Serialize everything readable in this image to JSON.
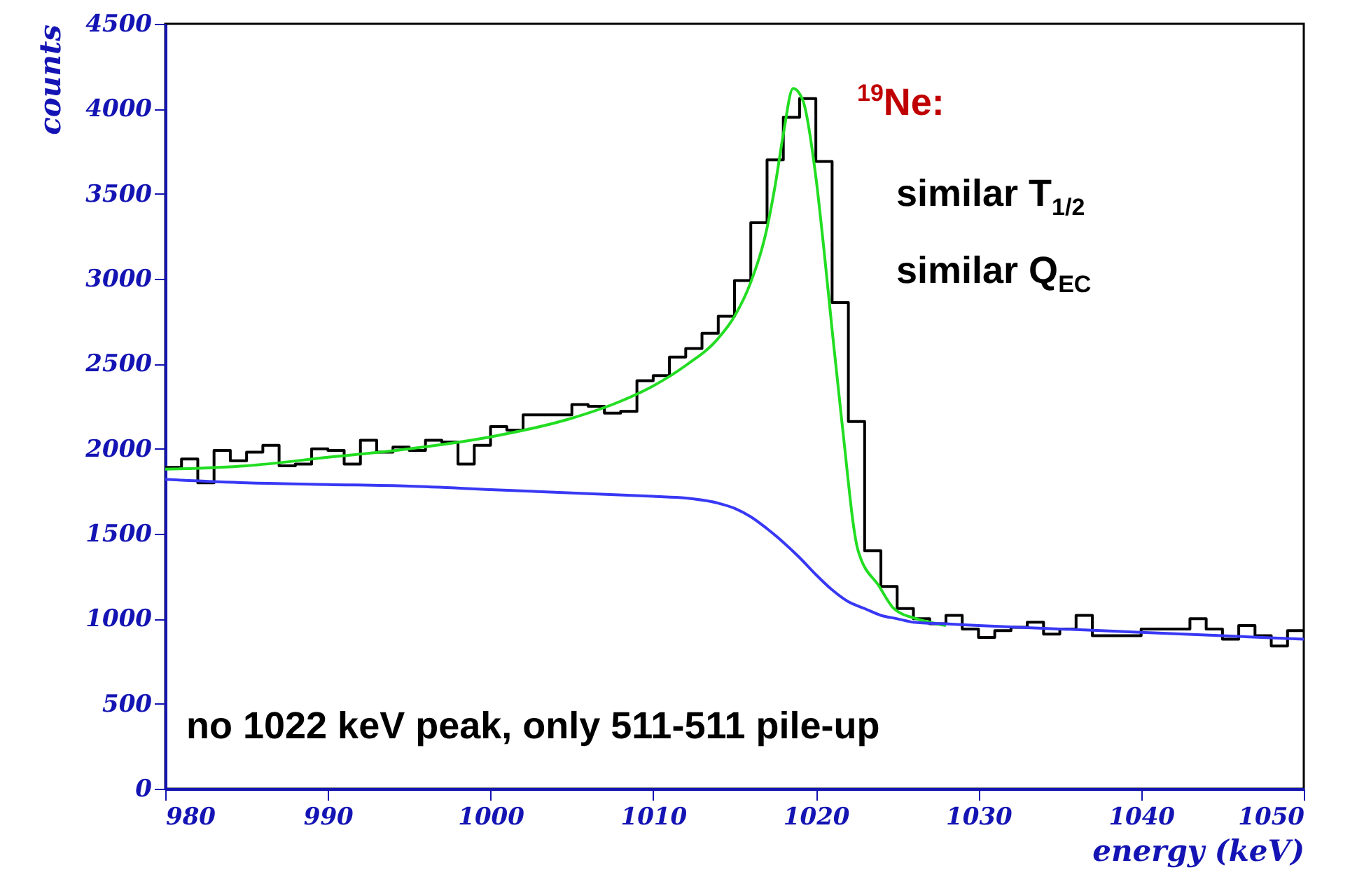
{
  "chart_data": {
    "type": "histogram",
    "xlabel": "energy (keV)",
    "ylabel": "counts",
    "bins": [
      980,
      981,
      982,
      983,
      984,
      985,
      986,
      987,
      988,
      989,
      990,
      991,
      992,
      993,
      994,
      995,
      996,
      997,
      998,
      999,
      1000,
      1001,
      1002,
      1003,
      1004,
      1005,
      1006,
      1007,
      1008,
      1009,
      1010,
      1011,
      1012,
      1013,
      1014,
      1015,
      1016,
      1017,
      1018,
      1019,
      1020,
      1021,
      1022,
      1023,
      1024,
      1025,
      1026,
      1027,
      1028,
      1029,
      1030,
      1031,
      1032,
      1033,
      1034,
      1035,
      1036,
      1037,
      1038,
      1039,
      1040,
      1041,
      1042,
      1043,
      1044,
      1045,
      1046,
      1047,
      1048,
      1049,
      1050
    ],
    "values": [
      1890,
      1940,
      1800,
      1990,
      1930,
      1980,
      2020,
      1900,
      1910,
      2000,
      1990,
      1910,
      2050,
      1980,
      2010,
      1990,
      2050,
      2040,
      1910,
      2020,
      2130,
      2110,
      2200,
      2200,
      2200,
      2260,
      2250,
      2210,
      2220,
      2400,
      2430,
      2540,
      2590,
      2680,
      2780,
      2990,
      3330,
      3700,
      3950,
      4060,
      3690,
      2860,
      2160,
      1400,
      1190,
      1060,
      1000,
      970,
      1020,
      940,
      890,
      930,
      950,
      980,
      910,
      940,
      1020,
      900,
      900,
      900,
      940,
      940,
      940,
      1000,
      940,
      880,
      960,
      900,
      840,
      930
    ],
    "color": "#000000",
    "series": [
      {
        "type": "line",
        "color": "#22dd22",
        "x": [
          980,
          985,
          990,
          995,
          1000,
          1005,
          1008,
          1010,
          1012,
          1014,
          1015,
          1016,
          1017,
          1017.5,
          1018,
          1018.6,
          1019.2,
          1020,
          1020.5,
          1021,
          1021.6,
          1022.6,
          1023.9,
          1024.8,
          1026.2,
          1027,
          1028
        ],
        "values": [
          1880,
          1900,
          1950,
          2000,
          2070,
          2180,
          2280,
          2370,
          2490,
          2650,
          2780,
          2980,
          3300,
          3550,
          3850,
          4120,
          4050,
          3600,
          3170,
          2700,
          2160,
          1400,
          1190,
          1060,
          1000,
          980,
          960
        ]
      },
      {
        "type": "line",
        "color": "#3838f5",
        "x": [
          980,
          985,
          990,
          995,
          1000,
          1005,
          1010,
          1012,
          1014,
          1015,
          1016,
          1017,
          1018,
          1019,
          1020,
          1021,
          1022,
          1023,
          1024,
          1025,
          1026,
          1028,
          1030,
          1035,
          1040,
          1045,
          1050
        ],
        "values": [
          1820,
          1800,
          1790,
          1780,
          1760,
          1740,
          1720,
          1710,
          1680,
          1650,
          1600,
          1530,
          1450,
          1360,
          1260,
          1170,
          1100,
          1060,
          1020,
          1000,
          980,
          970,
          960,
          940,
          920,
          900,
          880
        ]
      }
    ],
    "xlim": [
      980,
      1050
    ],
    "xticks": [
      980,
      990,
      1000,
      1010,
      1020,
      1030,
      1040,
      1050
    ],
    "ylim": [
      0,
      4500
    ],
    "yticks": [
      0,
      500,
      1000,
      1500,
      2000,
      2500,
      3000,
      3500,
      4000,
      4500
    ],
    "grid": false,
    "annotations": [
      "$^{19}$Ne:",
      "similar T$_{1/2}$",
      "similar Q$_{EC}$",
      "no 1022 keV peak, only 511-511 pile-up"
    ]
  }
}
